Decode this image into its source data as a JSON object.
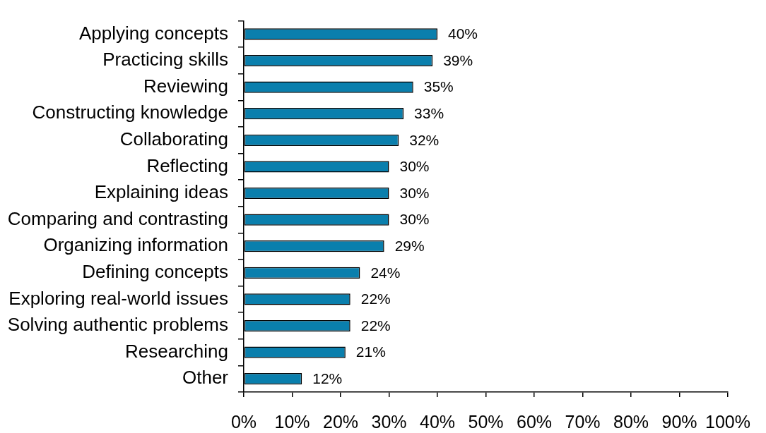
{
  "chart_data": {
    "type": "bar",
    "orientation": "horizontal",
    "categories": [
      "Applying concepts",
      "Practicing skills",
      "Reviewing",
      "Constructing knowledge",
      "Collaborating",
      "Reflecting",
      "Explaining ideas",
      "Comparing and contrasting",
      "Organizing information",
      "Defining concepts",
      "Exploring real-world issues",
      "Solving authentic problems",
      "Researching",
      "Other"
    ],
    "values": [
      40,
      39,
      35,
      33,
      32,
      30,
      30,
      30,
      29,
      24,
      22,
      22,
      21,
      12
    ],
    "value_labels": [
      "40%",
      "39%",
      "35%",
      "33%",
      "32%",
      "30%",
      "30%",
      "30%",
      "29%",
      "24%",
      "22%",
      "22%",
      "21%",
      "12%"
    ],
    "color": "#0a7fad",
    "xlim": [
      0,
      100
    ],
    "xticks": [
      {
        "value": 0,
        "label": "0%"
      },
      {
        "value": 10,
        "label": "10%"
      },
      {
        "value": 20,
        "label": "20%"
      },
      {
        "value": 30,
        "label": "30%"
      },
      {
        "value": 40,
        "label": "40%"
      },
      {
        "value": 50,
        "label": "50%"
      },
      {
        "value": 60,
        "label": "60%"
      },
      {
        "value": 70,
        "label": "70%"
      },
      {
        "value": 80,
        "label": "80%"
      },
      {
        "value": 90,
        "label": "90%"
      },
      {
        "value": 100,
        "label": "100%"
      }
    ]
  }
}
